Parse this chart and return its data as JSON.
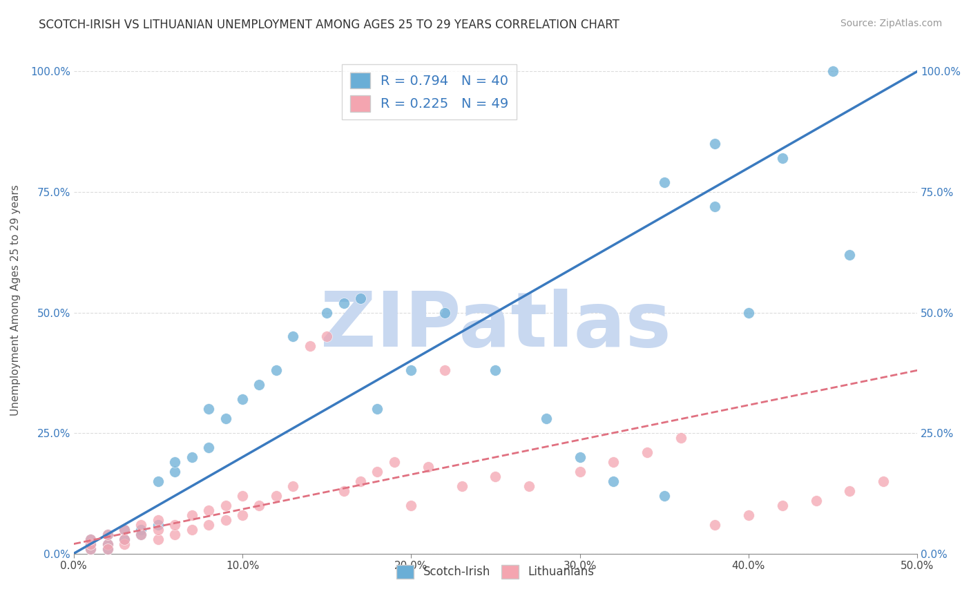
{
  "title": "SCOTCH-IRISH VS LITHUANIAN UNEMPLOYMENT AMONG AGES 25 TO 29 YEARS CORRELATION CHART",
  "source": "Source: ZipAtlas.com",
  "ylabel": "Unemployment Among Ages 25 to 29 years",
  "xlim": [
    0.0,
    0.5
  ],
  "ylim": [
    0.0,
    1.05
  ],
  "xticks": [
    0.0,
    0.1,
    0.2,
    0.3,
    0.4,
    0.5
  ],
  "yticks": [
    0.0,
    0.25,
    0.5,
    0.75,
    1.0
  ],
  "xticklabels": [
    "0.0%",
    "10.0%",
    "20.0%",
    "30.0%",
    "40.0%",
    "50.0%"
  ],
  "yticklabels": [
    "0.0%",
    "25.0%",
    "50.0%",
    "75.0%",
    "100.0%"
  ],
  "legend_label1": "Scotch-Irish",
  "legend_label2": "Lithuanians",
  "R1": 0.794,
  "N1": 40,
  "R2": 0.225,
  "N2": 49,
  "blue_color": "#6aaed6",
  "pink_color": "#f4a5b0",
  "blue_line_color": "#3a7abf",
  "pink_line_color": "#e07080",
  "watermark": "ZIPatlas",
  "watermark_color": "#c8d8f0",
  "scotch_irish_x": [
    0.01,
    0.01,
    0.01,
    0.02,
    0.02,
    0.02,
    0.03,
    0.03,
    0.04,
    0.04,
    0.05,
    0.05,
    0.06,
    0.06,
    0.07,
    0.08,
    0.08,
    0.09,
    0.1,
    0.11,
    0.12,
    0.13,
    0.15,
    0.16,
    0.17,
    0.18,
    0.2,
    0.22,
    0.25,
    0.28,
    0.3,
    0.32,
    0.35,
    0.38,
    0.4,
    0.42,
    0.45,
    0.46,
    0.35,
    0.38
  ],
  "scotch_irish_y": [
    0.01,
    0.02,
    0.03,
    0.02,
    0.04,
    0.01,
    0.03,
    0.05,
    0.05,
    0.04,
    0.06,
    0.15,
    0.17,
    0.19,
    0.2,
    0.22,
    0.3,
    0.28,
    0.32,
    0.35,
    0.38,
    0.45,
    0.5,
    0.52,
    0.53,
    0.3,
    0.38,
    0.5,
    0.38,
    0.28,
    0.2,
    0.15,
    0.12,
    0.85,
    0.5,
    0.82,
    1.0,
    0.62,
    0.77,
    0.72
  ],
  "lithuanian_x": [
    0.01,
    0.01,
    0.01,
    0.02,
    0.02,
    0.02,
    0.03,
    0.03,
    0.03,
    0.04,
    0.04,
    0.05,
    0.05,
    0.05,
    0.06,
    0.06,
    0.07,
    0.07,
    0.08,
    0.08,
    0.09,
    0.09,
    0.1,
    0.1,
    0.11,
    0.12,
    0.13,
    0.14,
    0.15,
    0.16,
    0.17,
    0.18,
    0.19,
    0.2,
    0.21,
    0.22,
    0.23,
    0.25,
    0.27,
    0.3,
    0.32,
    0.34,
    0.36,
    0.38,
    0.4,
    0.42,
    0.44,
    0.46,
    0.48
  ],
  "lithuanian_y": [
    0.01,
    0.02,
    0.03,
    0.02,
    0.04,
    0.01,
    0.02,
    0.05,
    0.03,
    0.04,
    0.06,
    0.03,
    0.05,
    0.07,
    0.04,
    0.06,
    0.05,
    0.08,
    0.06,
    0.09,
    0.07,
    0.1,
    0.08,
    0.12,
    0.1,
    0.12,
    0.14,
    0.43,
    0.45,
    0.13,
    0.15,
    0.17,
    0.19,
    0.1,
    0.18,
    0.38,
    0.14,
    0.16,
    0.14,
    0.17,
    0.19,
    0.21,
    0.24,
    0.06,
    0.08,
    0.1,
    0.11,
    0.13,
    0.15
  ],
  "blue_line_x": [
    0.0,
    0.5
  ],
  "blue_line_y": [
    0.0,
    1.0
  ],
  "pink_line_x": [
    0.0,
    0.5
  ],
  "pink_line_y": [
    0.02,
    0.38
  ]
}
